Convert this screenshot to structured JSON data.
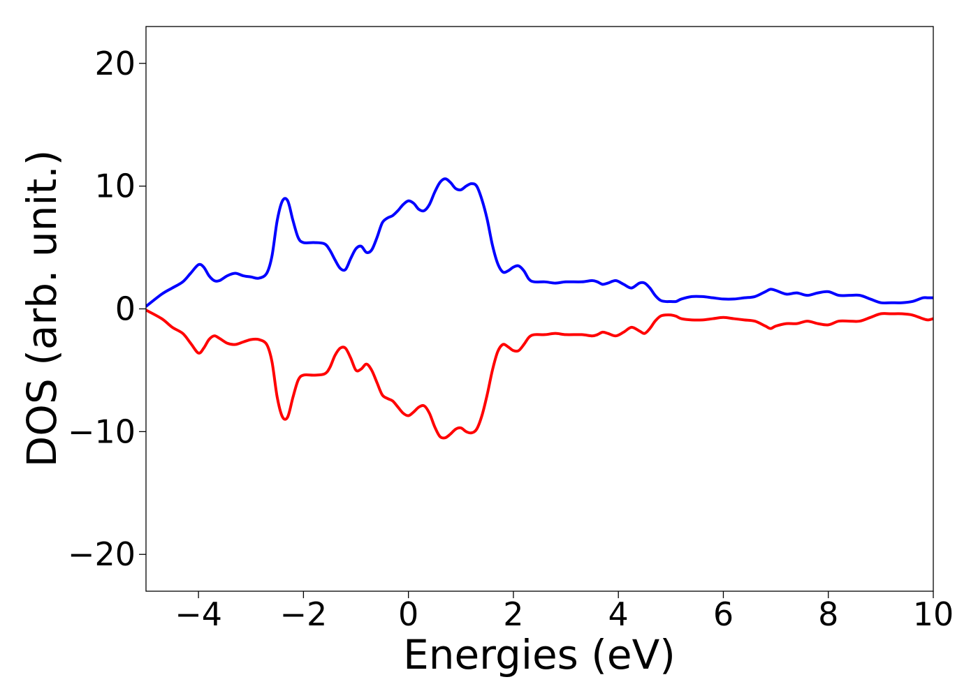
{
  "chart_data": {
    "type": "line",
    "title": "",
    "xlabel": "Energies (eV)",
    "ylabel": "DOS (arb. unit.)",
    "xlim": [
      -5,
      10
    ],
    "ylim": [
      -23,
      23
    ],
    "xticks": [
      -4,
      -2,
      0,
      2,
      4,
      6,
      8,
      10
    ],
    "yticks": [
      -20,
      -10,
      0,
      10,
      20
    ],
    "xtick_labels": [
      "−4",
      "−2",
      "0",
      "2",
      "4",
      "6",
      "8",
      "10"
    ],
    "ytick_labels": [
      "−20",
      "−10",
      "0",
      "10",
      "20"
    ],
    "grid": false,
    "legend": "none",
    "x": [
      -5.0,
      -4.7,
      -4.5,
      -4.3,
      -4.15,
      -4.0,
      -3.9,
      -3.8,
      -3.7,
      -3.6,
      -3.45,
      -3.3,
      -3.15,
      -3.0,
      -2.85,
      -2.7,
      -2.6,
      -2.5,
      -2.4,
      -2.3,
      -2.2,
      -2.1,
      -2.0,
      -1.8,
      -1.6,
      -1.5,
      -1.4,
      -1.3,
      -1.2,
      -1.1,
      -1.0,
      -0.9,
      -0.8,
      -0.7,
      -0.6,
      -0.5,
      -0.4,
      -0.3,
      -0.2,
      -0.1,
      0.0,
      0.1,
      0.2,
      0.3,
      0.4,
      0.5,
      0.6,
      0.7,
      0.8,
      0.9,
      1.0,
      1.1,
      1.2,
      1.3,
      1.4,
      1.5,
      1.6,
      1.7,
      1.8,
      1.9,
      2.0,
      2.1,
      2.2,
      2.3,
      2.4,
      2.6,
      2.8,
      3.0,
      3.3,
      3.5,
      3.6,
      3.7,
      3.8,
      3.95,
      4.1,
      4.25,
      4.4,
      4.5,
      4.6,
      4.7,
      4.8,
      4.9,
      5.0,
      5.1,
      5.2,
      5.4,
      5.6,
      5.8,
      6.0,
      6.2,
      6.4,
      6.6,
      6.8,
      6.9,
      7.0,
      7.2,
      7.4,
      7.6,
      7.8,
      8.0,
      8.2,
      8.4,
      8.6,
      8.8,
      9.0,
      9.2,
      9.4,
      9.6,
      9.8,
      9.9,
      10.0
    ],
    "series": [
      {
        "color": "#0000ff",
        "values": [
          0.2,
          1.2,
          1.7,
          2.2,
          2.9,
          3.6,
          3.4,
          2.7,
          2.3,
          2.3,
          2.7,
          2.9,
          2.7,
          2.6,
          2.5,
          2.9,
          4.3,
          7.2,
          8.8,
          8.8,
          7.2,
          5.8,
          5.4,
          5.4,
          5.3,
          4.8,
          4.0,
          3.3,
          3.2,
          4.1,
          4.9,
          5.1,
          4.6,
          4.8,
          5.8,
          7.0,
          7.4,
          7.6,
          8.0,
          8.5,
          8.8,
          8.6,
          8.1,
          8.0,
          8.5,
          9.5,
          10.3,
          10.6,
          10.3,
          9.8,
          9.7,
          10.0,
          10.2,
          10.0,
          8.9,
          7.3,
          5.2,
          3.7,
          3.0,
          3.1,
          3.4,
          3.5,
          3.1,
          2.4,
          2.2,
          2.2,
          2.1,
          2.2,
          2.2,
          2.3,
          2.2,
          2.0,
          2.1,
          2.3,
          2.0,
          1.7,
          2.1,
          2.1,
          1.7,
          1.1,
          0.7,
          0.6,
          0.6,
          0.6,
          0.8,
          1.0,
          1.0,
          0.9,
          0.8,
          0.8,
          0.9,
          1.0,
          1.4,
          1.6,
          1.5,
          1.2,
          1.3,
          1.1,
          1.3,
          1.4,
          1.1,
          1.1,
          1.1,
          0.8,
          0.5,
          0.5,
          0.5,
          0.6,
          0.9,
          0.9,
          0.9
        ]
      },
      {
        "color": "#ff0000",
        "values": [
          -0.1,
          -0.8,
          -1.5,
          -2.0,
          -2.8,
          -3.6,
          -3.2,
          -2.5,
          -2.2,
          -2.4,
          -2.8,
          -2.9,
          -2.7,
          -2.5,
          -2.5,
          -2.9,
          -4.3,
          -7.2,
          -8.8,
          -8.8,
          -7.2,
          -5.8,
          -5.4,
          -5.4,
          -5.3,
          -4.8,
          -3.8,
          -3.2,
          -3.2,
          -4.0,
          -5.0,
          -4.9,
          -4.5,
          -5.0,
          -6.0,
          -7.0,
          -7.3,
          -7.5,
          -8.0,
          -8.5,
          -8.7,
          -8.4,
          -8.0,
          -7.9,
          -8.5,
          -9.6,
          -10.4,
          -10.5,
          -10.2,
          -9.8,
          -9.7,
          -10.0,
          -10.1,
          -9.8,
          -8.7,
          -7.0,
          -5.0,
          -3.5,
          -2.9,
          -3.1,
          -3.4,
          -3.4,
          -2.9,
          -2.3,
          -2.1,
          -2.1,
          -2.0,
          -2.1,
          -2.1,
          -2.2,
          -2.1,
          -1.9,
          -2.0,
          -2.2,
          -1.9,
          -1.5,
          -1.8,
          -2.0,
          -1.6,
          -1.0,
          -0.6,
          -0.5,
          -0.5,
          -0.6,
          -0.8,
          -0.9,
          -0.9,
          -0.8,
          -0.7,
          -0.8,
          -0.9,
          -1.0,
          -1.4,
          -1.6,
          -1.4,
          -1.2,
          -1.2,
          -1.0,
          -1.2,
          -1.3,
          -1.0,
          -1.0,
          -1.0,
          -0.7,
          -0.4,
          -0.4,
          -0.4,
          -0.5,
          -0.8,
          -0.9,
          -0.8
        ]
      }
    ]
  }
}
